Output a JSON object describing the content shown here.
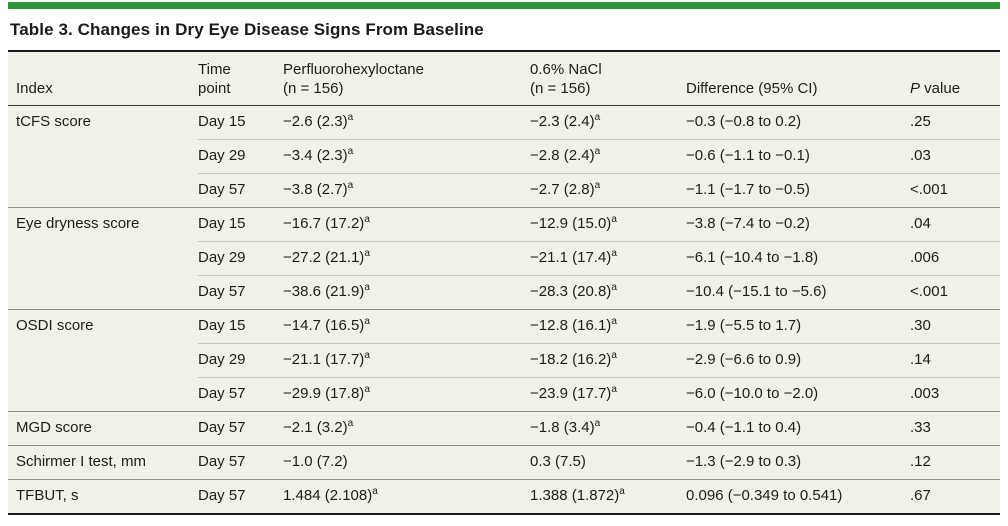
{
  "colors": {
    "accent_green": "#2e9639",
    "table_background": "#f2f1e7",
    "text": "#1d1d1b",
    "thin_row_line": "#c7c6ba",
    "group_line": "#8f8e84",
    "heavy_rule": "#1a1a1a"
  },
  "title": "Table 3. Changes in Dry Eye Disease Signs From Baseline",
  "table": {
    "footnote_marker": "a",
    "header": {
      "index": "Index",
      "time_line1": "Time",
      "time_line2": "point",
      "drug_line1": "Perfluorohexyloctane",
      "drug_line2": "(n = 156)",
      "control_line1": "0.6% NaCl",
      "control_line2": "(n = 156)",
      "difference": "Difference (95% CI)",
      "p_italic": "P",
      "p_rest": " value"
    },
    "groups": [
      {
        "index": "tCFS score",
        "rows": [
          {
            "time": "Day 15",
            "drug": "−2.6 (2.3)",
            "drug_sup": true,
            "control": "−2.3 (2.4)",
            "control_sup": true,
            "difference": "−0.3 (−0.8 to 0.2)",
            "p": ".25"
          },
          {
            "time": "Day 29",
            "drug": "−3.4 (2.3)",
            "drug_sup": true,
            "control": "−2.8 (2.4)",
            "control_sup": true,
            "difference": "−0.6 (−1.1 to −0.1)",
            "p": ".03"
          },
          {
            "time": "Day 57",
            "drug": "−3.8 (2.7)",
            "drug_sup": true,
            "control": "−2.7 (2.8)",
            "control_sup": true,
            "difference": "−1.1 (−1.7 to −0.5)",
            "p": "<.001"
          }
        ]
      },
      {
        "index": "Eye dryness score",
        "rows": [
          {
            "time": "Day 15",
            "drug": "−16.7 (17.2)",
            "drug_sup": true,
            "control": "−12.9 (15.0)",
            "control_sup": true,
            "difference": "−3.8 (−7.4 to −0.2)",
            "p": ".04"
          },
          {
            "time": "Day 29",
            "drug": "−27.2 (21.1)",
            "drug_sup": true,
            "control": "−21.1 (17.4)",
            "control_sup": true,
            "difference": "−6.1 (−10.4 to −1.8)",
            "p": ".006"
          },
          {
            "time": "Day 57",
            "drug": "−38.6 (21.9)",
            "drug_sup": true,
            "control": "−28.3 (20.8)",
            "control_sup": true,
            "difference": "−10.4 (−15.1 to −5.6)",
            "p": "<.001"
          }
        ]
      },
      {
        "index": "OSDI score",
        "rows": [
          {
            "time": "Day 15",
            "drug": "−14.7 (16.5)",
            "drug_sup": true,
            "control": "−12.8 (16.1)",
            "control_sup": true,
            "difference": "−1.9 (−5.5 to 1.7)",
            "p": ".30"
          },
          {
            "time": "Day 29",
            "drug": "−21.1 (17.7)",
            "drug_sup": true,
            "control": "−18.2 (16.2)",
            "control_sup": true,
            "difference": "−2.9 (−6.6 to 0.9)",
            "p": ".14"
          },
          {
            "time": "Day 57",
            "drug": "−29.9 (17.8)",
            "drug_sup": true,
            "control": "−23.9 (17.7)",
            "control_sup": true,
            "difference": "−6.0 (−10.0 to −2.0)",
            "p": ".003"
          }
        ]
      },
      {
        "index": "MGD score",
        "rows": [
          {
            "time": "Day 57",
            "drug": "−2.1 (3.2)",
            "drug_sup": true,
            "control": "−1.8 (3.4)",
            "control_sup": true,
            "difference": "−0.4 (−1.1 to 0.4)",
            "p": ".33"
          }
        ]
      },
      {
        "index": "Schirmer I test, mm",
        "rows": [
          {
            "time": "Day 57",
            "drug": "−1.0 (7.2)",
            "drug_sup": false,
            "control": "0.3 (7.5)",
            "control_sup": false,
            "difference": "−1.3 (−2.9 to 0.3)",
            "p": ".12"
          }
        ]
      },
      {
        "index": "TFBUT, s",
        "rows": [
          {
            "time": "Day 57",
            "drug": "1.484 (2.108)",
            "drug_sup": true,
            "control": "1.388 (1.872)",
            "control_sup": true,
            "difference": "0.096 (−0.349 to 0.541)",
            "p": ".67"
          }
        ]
      }
    ]
  }
}
